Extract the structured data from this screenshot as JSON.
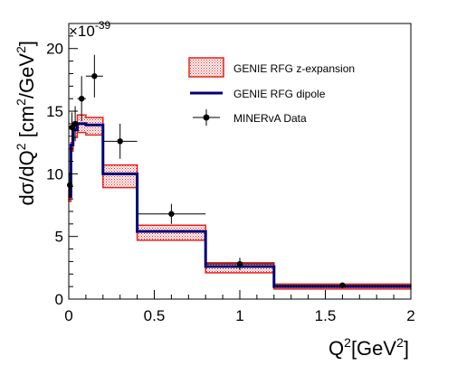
{
  "chart_data": {
    "type": "line",
    "multiplier_base": "×10",
    "multiplier_exp": "-39",
    "xlabel": {
      "main": "Q",
      "sup1": "2",
      "rest": "[GeV",
      "sup2": "2",
      "end": "]"
    },
    "ylabel": {
      "p1": "dσ/dQ",
      "s1": "2",
      "p2": " [cm",
      "s2": "2",
      "p3": "/GeV",
      "s3": "2",
      "p4": "]"
    },
    "xlim": [
      0,
      2
    ],
    "ylim": [
      0,
      22
    ],
    "x_ticks": [
      {
        "v": 0,
        "label": "0"
      },
      {
        "v": 0.5,
        "label": "0.5"
      },
      {
        "v": 1,
        "label": "1"
      },
      {
        "v": 1.5,
        "label": "1.5"
      },
      {
        "v": 2,
        "label": "2"
      }
    ],
    "y_ticks": [
      {
        "v": 0,
        "label": "0"
      },
      {
        "v": 5,
        "label": "5"
      },
      {
        "v": 10,
        "label": "10"
      },
      {
        "v": 15,
        "label": "15"
      },
      {
        "v": 20,
        "label": "20"
      }
    ],
    "bin_edges": [
      0,
      0.0125,
      0.025,
      0.05,
      0.1,
      0.2,
      0.4,
      0.8,
      1.2,
      2.0
    ],
    "series": [
      {
        "name": "GENIE RFG z-expansion",
        "style": "band",
        "color": "#e8201c",
        "lower": [
          7.8,
          11.8,
          12.9,
          13.3,
          13.1,
          8.9,
          4.7,
          2.1,
          0.8
        ],
        "upper": [
          8.8,
          12.5,
          14.0,
          14.7,
          14.5,
          10.7,
          5.9,
          2.9,
          1.2
        ]
      },
      {
        "name": "GENIE RFG dipole",
        "style": "step",
        "color": "#00007a",
        "values": [
          8.2,
          12.3,
          13.5,
          14.0,
          13.9,
          10.0,
          5.4,
          2.6,
          1.0
        ]
      },
      {
        "name": "MINERvA Data",
        "style": "points",
        "color": "#000000",
        "points": [
          {
            "x": 0.00625,
            "y": 9.1,
            "xerr": 0.00625,
            "yerr": 1.0
          },
          {
            "x": 0.01875,
            "y": 13.7,
            "xerr": 0.00625,
            "yerr": 1.2
          },
          {
            "x": 0.0375,
            "y": 14.0,
            "xerr": 0.0125,
            "yerr": 1.4
          },
          {
            "x": 0.075,
            "y": 16.0,
            "xerr": 0.025,
            "yerr": 1.8
          },
          {
            "x": 0.15,
            "y": 17.8,
            "xerr": 0.05,
            "yerr": 1.7
          },
          {
            "x": 0.3,
            "y": 12.6,
            "xerr": 0.1,
            "yerr": 1.4
          },
          {
            "x": 0.6,
            "y": 6.8,
            "xerr": 0.2,
            "yerr": 0.8
          },
          {
            "x": 1.0,
            "y": 2.8,
            "xerr": 0.2,
            "yerr": 0.5
          },
          {
            "x": 1.6,
            "y": 1.1,
            "xerr": 0.4,
            "yerr": 0.2
          }
        ]
      }
    ],
    "legend_position": "top-right",
    "grid": false
  }
}
